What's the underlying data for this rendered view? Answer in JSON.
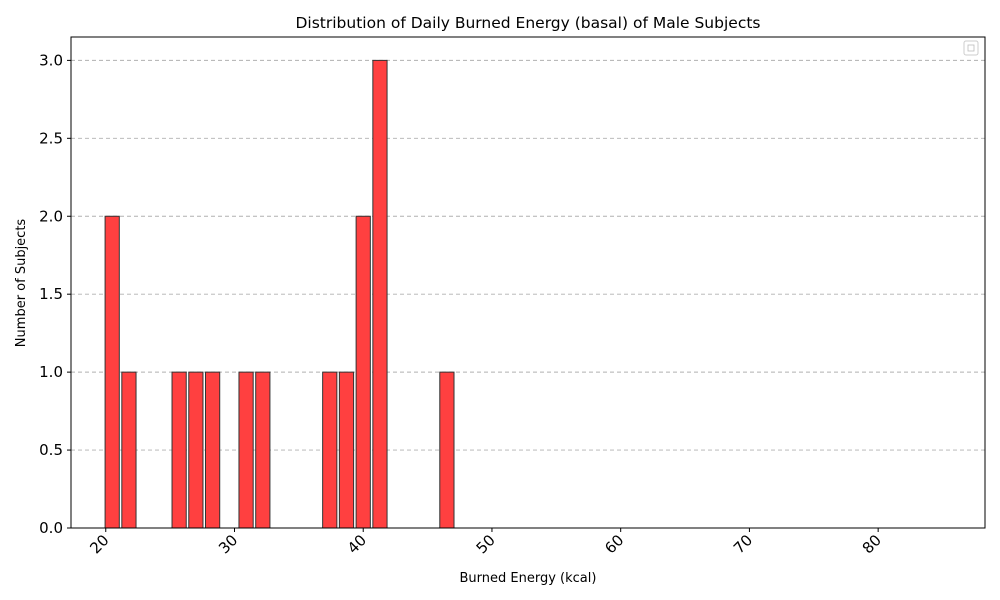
{
  "chart_data": {
    "type": "bar",
    "title": "Distribution of Daily Burned Energy (basal) of Male Subjects",
    "xlabel": "Burned Energy (kcal)",
    "ylabel": "Number of Subjects",
    "bin_width": 1.3,
    "bins": [
      {
        "x": 20.5,
        "count": 2
      },
      {
        "x": 21.8,
        "count": 1
      },
      {
        "x": 23.1,
        "count": 0
      },
      {
        "x": 24.4,
        "count": 0
      },
      {
        "x": 25.7,
        "count": 1
      },
      {
        "x": 27.0,
        "count": 1
      },
      {
        "x": 28.3,
        "count": 1
      },
      {
        "x": 29.6,
        "count": 0
      },
      {
        "x": 30.9,
        "count": 1
      },
      {
        "x": 32.2,
        "count": 1
      },
      {
        "x": 33.5,
        "count": 0
      },
      {
        "x": 34.8,
        "count": 0
      },
      {
        "x": 36.1,
        "count": 0
      },
      {
        "x": 37.4,
        "count": 1
      },
      {
        "x": 38.7,
        "count": 1
      },
      {
        "x": 40.0,
        "count": 2
      },
      {
        "x": 41.3,
        "count": 3
      },
      {
        "x": 42.6,
        "count": 0
      },
      {
        "x": 43.9,
        "count": 0
      },
      {
        "x": 45.2,
        "count": 0
      },
      {
        "x": 46.5,
        "count": 1
      },
      {
        "x": 47.8,
        "count": 0
      },
      {
        "x": 49.1,
        "count": 0
      },
      {
        "x": 50.4,
        "count": 0
      },
      {
        "x": 51.7,
        "count": 0
      },
      {
        "x": 53.0,
        "count": 0
      },
      {
        "x": 54.3,
        "count": 0
      },
      {
        "x": 55.6,
        "count": 0
      },
      {
        "x": 56.9,
        "count": 0
      },
      {
        "x": 58.2,
        "count": 0
      },
      {
        "x": 59.5,
        "count": 0
      },
      {
        "x": 60.8,
        "count": 0
      },
      {
        "x": 62.1,
        "count": 0
      },
      {
        "x": 63.4,
        "count": 0
      },
      {
        "x": 64.7,
        "count": 0
      },
      {
        "x": 66.0,
        "count": 0
      },
      {
        "x": 67.3,
        "count": 0
      },
      {
        "x": 68.6,
        "count": 0
      },
      {
        "x": 69.9,
        "count": 0
      },
      {
        "x": 71.2,
        "count": 0
      },
      {
        "x": 72.5,
        "count": 0
      },
      {
        "x": 73.8,
        "count": 0
      },
      {
        "x": 75.1,
        "count": 0
      },
      {
        "x": 76.4,
        "count": 0
      },
      {
        "x": 77.7,
        "count": 0
      },
      {
        "x": 79.0,
        "count": 0
      },
      {
        "x": 80.3,
        "count": 0
      },
      {
        "x": 81.6,
        "count": 0
      },
      {
        "x": 82.9,
        "count": 0
      },
      {
        "x": 84.2,
        "count": 0
      }
    ],
    "xlim": [
      17.3,
      88.3
    ],
    "ylim": [
      0,
      3.15
    ],
    "xticks": [
      20,
      30,
      40,
      50,
      60,
      70,
      80
    ],
    "yticks": [
      0.0,
      0.5,
      1.0,
      1.5,
      2.0,
      2.5,
      3.0
    ],
    "ytick_labels": [
      "0.0",
      "0.5",
      "1.0",
      "1.5",
      "2.0",
      "2.5",
      "3.0"
    ],
    "xtick_rotation": 45,
    "grid": "y-dashed",
    "legend": "top-right",
    "colors": {
      "bar_fill": "#ff4040",
      "bar_edge": "#333333",
      "grid": "#b0b0b0"
    }
  }
}
